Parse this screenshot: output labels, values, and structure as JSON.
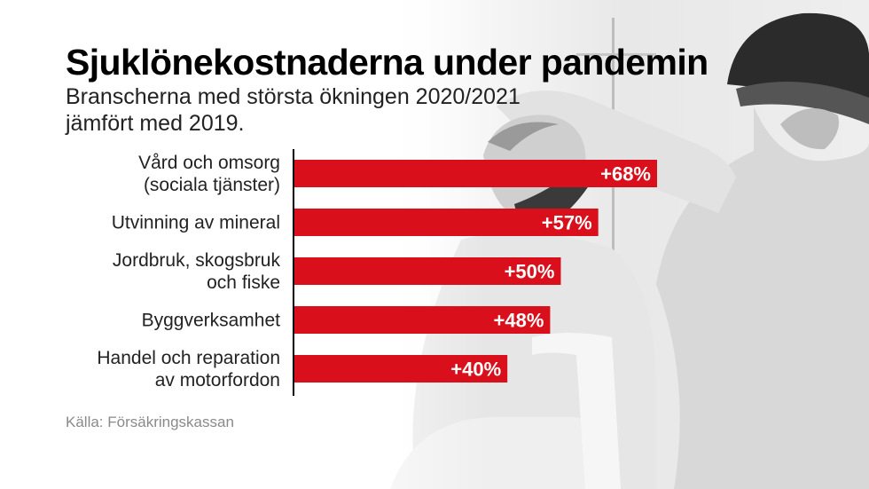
{
  "header": {
    "title": "Sjuklönekostnaderna under pandemin",
    "subtitle": "Branscherna med största ökningen 2020/2021 jämfört med 2019."
  },
  "source": "Källa: Försäkringskassan",
  "colors": {
    "bar": "#d9101c",
    "axis": "#000000",
    "label_text": "#ffffff"
  },
  "chart_data": {
    "type": "bar",
    "orientation": "horizontal",
    "categories": [
      [
        "Vård och omsorg",
        "(sociala tjänster)"
      ],
      [
        "Utvinning av mineral"
      ],
      [
        "Jordbruk, skogsbruk",
        "och fiske"
      ],
      [
        "Byggverksamhet"
      ],
      [
        "Handel och reparation",
        "av motorfordon"
      ]
    ],
    "values": [
      68,
      57,
      50,
      48,
      40
    ],
    "value_labels": [
      "+68%",
      "+57%",
      "+50%",
      "+48%",
      "+40%"
    ],
    "unit": "%",
    "xlim": [
      0,
      68
    ],
    "grid": false,
    "legend": "none"
  }
}
